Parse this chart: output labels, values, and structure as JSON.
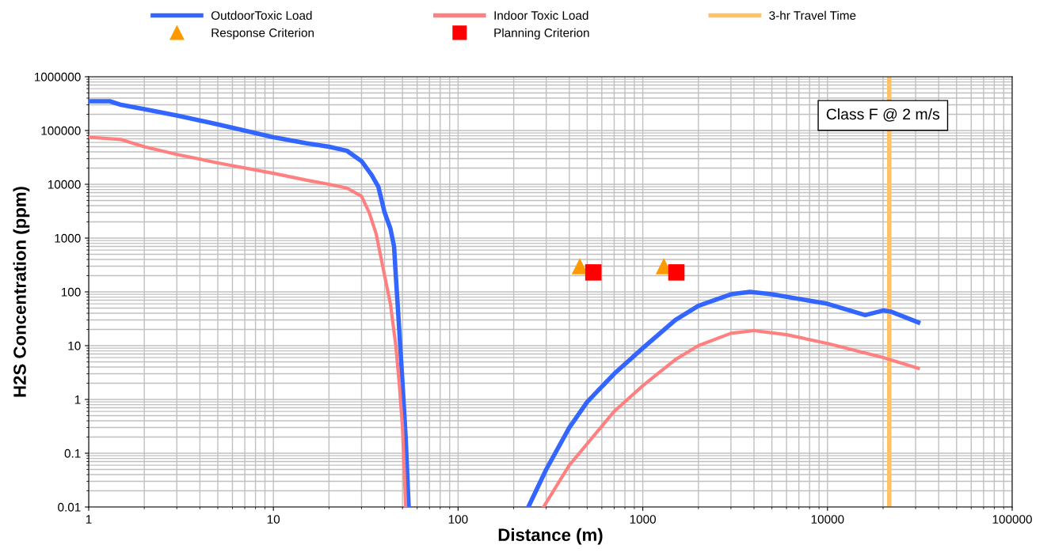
{
  "chart_data": {
    "type": "line",
    "xlabel": "Distance (m)",
    "ylabel": "H2S Concentration (ppm)",
    "log": "xy",
    "grid": true,
    "legend": "top",
    "xlim": [
      1,
      100000
    ],
    "xticks": [
      1,
      10,
      100,
      1000,
      10000,
      100000
    ],
    "ylim": [
      0.01,
      1000000
    ],
    "yticks": [
      0.01,
      0.1,
      1,
      10,
      100,
      1000,
      10000,
      100000,
      1000000
    ],
    "series": [
      {
        "name": "OutdoorToxic Load",
        "color": "#3366ff",
        "marker": "none",
        "x": [
          1,
          1.3,
          1.5,
          2,
          3,
          5,
          10,
          15,
          20,
          25,
          30,
          34,
          37,
          40,
          43,
          45,
          46,
          48,
          50,
          52,
          54
        ],
        "values": [
          350000,
          350000,
          300000,
          250000,
          190000,
          130000,
          75000,
          58000,
          50000,
          42000,
          27000,
          15000,
          9000,
          3000,
          1500,
          700,
          200,
          20,
          2,
          0.2,
          0.01
        ]
      },
      {
        "name": "Indoor Toxic Load",
        "color": "#ff8080",
        "marker": "none",
        "x": [
          1,
          1.5,
          2,
          3,
          5,
          10,
          15,
          20,
          25,
          30,
          33,
          36,
          40,
          43,
          46,
          48,
          50,
          52
        ],
        "values": [
          75000,
          68000,
          50000,
          36000,
          25000,
          16000,
          12000,
          10000,
          8500,
          6000,
          3000,
          1200,
          200,
          60,
          10,
          2,
          0.3,
          0.01
        ]
      },
      {
        "name": "Response Criterion",
        "type": "scatter",
        "color": "#ff9900",
        "marker": "triangle",
        "x": [
          456,
          1300
        ],
        "values": [
          300,
          300
        ]
      },
      {
        "name": "Planning Criterion",
        "type": "scatter",
        "color": "#ff0000",
        "marker": "square",
        "x": [
          540,
          1520
        ],
        "values": [
          230,
          230
        ]
      },
      {
        "name": null,
        "color": "#3366ff",
        "marker": "none",
        "x": [
          240,
          300,
          400,
          500,
          700,
          1000,
          1500,
          2000,
          3000,
          3800,
          5000,
          10000,
          16000,
          20000,
          22000,
          31000
        ],
        "values": [
          0.01,
          0.05,
          0.3,
          0.9,
          3,
          9,
          30,
          55,
          90,
          100,
          90,
          60,
          37,
          45,
          43,
          27
        ]
      },
      {
        "name": null,
        "color": "#ff8080",
        "marker": "none",
        "x": [
          290,
          400,
          500,
          700,
          1000,
          1500,
          2000,
          3000,
          4000,
          6000,
          10000,
          20000,
          31000
        ],
        "values": [
          0.01,
          0.06,
          0.15,
          0.6,
          1.8,
          5.5,
          10,
          17,
          19,
          16,
          11,
          6,
          3.8
        ]
      }
    ],
    "ref_lines": [
      {
        "axis": "x",
        "value": 21600,
        "label": "3-hr Travel Time",
        "color": "#ffc266"
      }
    ],
    "annotations": [
      "Class F @ 2 m/s"
    ]
  }
}
